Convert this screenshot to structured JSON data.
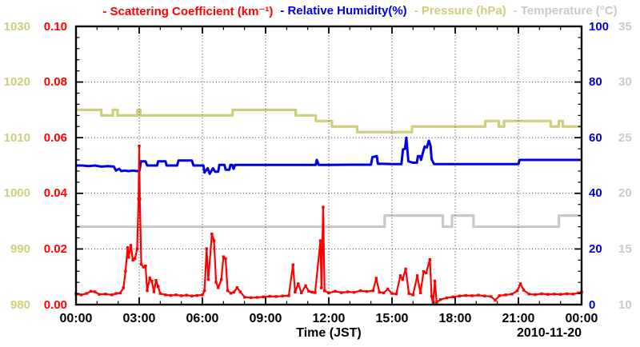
{
  "legend": [
    {
      "id": "scattering",
      "label": "- Scattering Coefficient (km⁻¹)",
      "color": "#ff0000"
    },
    {
      "id": "humidity",
      "label": "- Relative Humidity(%)",
      "color": "#0000e0"
    },
    {
      "id": "pressure",
      "label": "- Pressure (hPa)",
      "color": "#cece7c"
    },
    {
      "id": "temperature",
      "label": "- Temperature (°C)",
      "color": "#c9c9c9"
    }
  ],
  "chart_data": {
    "type": "line",
    "title": "",
    "x_axis": {
      "label": "Time (JST)",
      "date": "2010-11-20",
      "range_hours": [
        0,
        24
      ],
      "minor_step_hours": 1,
      "ticks": [
        {
          "h": 0,
          "label": "00:00"
        },
        {
          "h": 3,
          "label": "03:00"
        },
        {
          "h": 6,
          "label": "06:00"
        },
        {
          "h": 9,
          "label": "09:00"
        },
        {
          "h": 12,
          "label": "12:00"
        },
        {
          "h": 15,
          "label": "15:00"
        },
        {
          "h": 18,
          "label": "18:00"
        },
        {
          "h": 21,
          "label": "21:00"
        },
        {
          "h": 24,
          "label": "00:00"
        }
      ]
    },
    "axes": {
      "scattering": {
        "name": "Scattering Coefficient (km⁻¹)",
        "color": "#ff0000",
        "side": "left-inner",
        "min": 0,
        "max": 0.1,
        "major_step": 0.02,
        "minor_step": 0.004,
        "ticks": [
          {
            "v": 0.0,
            "label": "0.00"
          },
          {
            "v": 0.02,
            "label": "0.02"
          },
          {
            "v": 0.04,
            "label": "0.04"
          },
          {
            "v": 0.06,
            "label": "0.06"
          },
          {
            "v": 0.08,
            "label": "0.08"
          },
          {
            "v": 0.1,
            "label": "0.10"
          }
        ]
      },
      "humidity": {
        "name": "Relative Humidity(%)",
        "color": "#0000e0",
        "side": "right-inner",
        "min": 0,
        "max": 100,
        "major_step": 20,
        "minor_step": 4,
        "ticks": [
          {
            "v": 0,
            "label": "0"
          },
          {
            "v": 20,
            "label": "20"
          },
          {
            "v": 40,
            "label": "40"
          },
          {
            "v": 60,
            "label": "60"
          },
          {
            "v": 80,
            "label": "80"
          },
          {
            "v": 100,
            "label": "100"
          }
        ]
      },
      "pressure": {
        "name": "Pressure (hPa)",
        "color": "#cece7c",
        "side": "left-outer",
        "min": 980,
        "max": 1030,
        "major_step": 10,
        "minor_step": 2,
        "ticks": [
          {
            "v": 980,
            "label": "980"
          },
          {
            "v": 990,
            "label": "990"
          },
          {
            "v": 1000,
            "label": "1000"
          },
          {
            "v": 1010,
            "label": "1010"
          },
          {
            "v": 1020,
            "label": "1020"
          },
          {
            "v": 1030,
            "label": "1030"
          }
        ]
      },
      "temperature": {
        "name": "Temperature (°C)",
        "color": "#c9c9c9",
        "side": "right-outer",
        "min": 10,
        "max": 35,
        "major_step": 5,
        "minor_step": 1,
        "ticks": [
          {
            "v": 10,
            "label": "10"
          },
          {
            "v": 15,
            "label": "15"
          },
          {
            "v": 20,
            "label": "20"
          },
          {
            "v": 25,
            "label": "25"
          },
          {
            "v": 30,
            "label": "30"
          },
          {
            "v": 35,
            "label": "35"
          }
        ]
      }
    },
    "grid": {
      "v_hours": [
        3,
        6,
        9,
        12,
        15,
        18,
        21
      ],
      "h_values_scattering": [
        0.02,
        0.04,
        0.06,
        0.08
      ]
    },
    "series": [
      {
        "id": "pressure",
        "name": "Pressure (hPa)",
        "axis": "pressure",
        "color": "#cece7c",
        "style": "step",
        "width": 3.2,
        "points": [
          [
            0,
            1015
          ],
          [
            1.2,
            1014
          ],
          [
            1.75,
            1015
          ],
          [
            1.97,
            1014
          ],
          [
            2.92,
            1015
          ],
          [
            3.05,
            1014
          ],
          [
            7.43,
            1015
          ],
          [
            10.43,
            1014
          ],
          [
            11.38,
            1013
          ],
          [
            12.15,
            1012
          ],
          [
            13.35,
            1011
          ],
          [
            15.95,
            1012
          ],
          [
            19.43,
            1013
          ],
          [
            20.07,
            1012
          ],
          [
            20.32,
            1013
          ],
          [
            22.53,
            1012
          ],
          [
            22.92,
            1013
          ],
          [
            23.11,
            1012
          ],
          [
            24,
            1012
          ]
        ]
      },
      {
        "id": "temperature",
        "name": "Temperature (°C)",
        "axis": "temperature",
        "color": "#c9c9c9",
        "style": "step",
        "width": 3.2,
        "points": [
          [
            0,
            17
          ],
          [
            14.65,
            18
          ],
          [
            17.41,
            17
          ],
          [
            17.85,
            18
          ],
          [
            18.87,
            17
          ],
          [
            22.92,
            18
          ],
          [
            24,
            18
          ]
        ]
      },
      {
        "id": "humidity",
        "name": "Relative Humidity(%)",
        "axis": "humidity",
        "color": "#0000e0",
        "style": "line",
        "width": 3.0,
        "points": [
          [
            0,
            50
          ],
          [
            0.3,
            50
          ],
          [
            0.6,
            49.8
          ],
          [
            0.9,
            50
          ],
          [
            1.2,
            49.6
          ],
          [
            1.5,
            49.8
          ],
          [
            1.8,
            49.6
          ],
          [
            1.9,
            48.2
          ],
          [
            2.05,
            48.8
          ],
          [
            2.15,
            48
          ],
          [
            2.3,
            48.2
          ],
          [
            2.5,
            48
          ],
          [
            2.7,
            48.2
          ],
          [
            2.9,
            48
          ],
          [
            3.02,
            48.2
          ],
          [
            3.08,
            51.5
          ],
          [
            3.3,
            51.5
          ],
          [
            3.38,
            50
          ],
          [
            3.6,
            50
          ],
          [
            3.85,
            50
          ],
          [
            3.9,
            51.5
          ],
          [
            4.25,
            51.5
          ],
          [
            4.3,
            50
          ],
          [
            4.8,
            50
          ],
          [
            4.87,
            51.8
          ],
          [
            5.5,
            51.8
          ],
          [
            5.58,
            50
          ],
          [
            6.05,
            50
          ],
          [
            6.1,
            47.5
          ],
          [
            6.25,
            49
          ],
          [
            6.35,
            47
          ],
          [
            6.5,
            49
          ],
          [
            6.6,
            47.8
          ],
          [
            6.75,
            47.8
          ],
          [
            6.8,
            50.2
          ],
          [
            7.05,
            50.2
          ],
          [
            7.1,
            48.5
          ],
          [
            7.28,
            48.5
          ],
          [
            7.33,
            50.2
          ],
          [
            7.42,
            50.2
          ],
          [
            7.48,
            48.8
          ],
          [
            7.55,
            50.2
          ],
          [
            8,
            50.2
          ],
          [
            9,
            50.2
          ],
          [
            10,
            50.2
          ],
          [
            11,
            50.2
          ],
          [
            11.38,
            50.2
          ],
          [
            11.43,
            52
          ],
          [
            11.52,
            50.2
          ],
          [
            12,
            50.2
          ],
          [
            13,
            50.3
          ],
          [
            14,
            50.3
          ],
          [
            14.07,
            53
          ],
          [
            14.28,
            53.4
          ],
          [
            14.33,
            50.6
          ],
          [
            14.6,
            50.6
          ],
          [
            15,
            50.5
          ],
          [
            15.45,
            50.5
          ],
          [
            15.52,
            55.8
          ],
          [
            15.62,
            56
          ],
          [
            15.68,
            60
          ],
          [
            15.78,
            51.5
          ],
          [
            16,
            51
          ],
          [
            16.18,
            51
          ],
          [
            16.23,
            53.4
          ],
          [
            16.33,
            53.4
          ],
          [
            16.38,
            52
          ],
          [
            16.48,
            55
          ],
          [
            16.55,
            56.8
          ],
          [
            16.65,
            56.5
          ],
          [
            16.75,
            58.9
          ],
          [
            16.83,
            57
          ],
          [
            16.88,
            52.2
          ],
          [
            17,
            50.5
          ],
          [
            18,
            50.5
          ],
          [
            19,
            50.5
          ],
          [
            20,
            50.5
          ],
          [
            21,
            50.5
          ],
          [
            21.05,
            52
          ],
          [
            22,
            52
          ],
          [
            23,
            52
          ],
          [
            24,
            52
          ]
        ]
      },
      {
        "id": "scattering",
        "name": "Scattering Coefficient (km⁻¹)",
        "axis": "scattering",
        "color": "#ff0000",
        "style": "line",
        "width": 2.2,
        "markers": true,
        "points": [
          [
            0,
            0.0038
          ],
          [
            0.25,
            0.0035
          ],
          [
            0.5,
            0.004
          ],
          [
            0.7,
            0.0048
          ],
          [
            0.9,
            0.0046
          ],
          [
            1.1,
            0.0037
          ],
          [
            1.4,
            0.0038
          ],
          [
            1.7,
            0.0035
          ],
          [
            1.9,
            0.004
          ],
          [
            2.1,
            0.0042
          ],
          [
            2.25,
            0.006
          ],
          [
            2.35,
            0.012
          ],
          [
            2.45,
            0.0205
          ],
          [
            2.5,
            0.017
          ],
          [
            2.6,
            0.0213
          ],
          [
            2.7,
            0.016
          ],
          [
            2.8,
            0.0165
          ],
          [
            2.9,
            0.02
          ],
          [
            2.97,
            0.038
          ],
          [
            3,
            0.057
          ],
          [
            3.03,
            0.038
          ],
          [
            3.1,
            0.0145
          ],
          [
            3.2,
            0.0135
          ],
          [
            3.3,
            0.0139
          ],
          [
            3.38,
            0.005
          ],
          [
            3.5,
            0.0096
          ],
          [
            3.6,
            0.0084
          ],
          [
            3.7,
            0.0046
          ],
          [
            3.8,
            0.0087
          ],
          [
            3.9,
            0.0065
          ],
          [
            4,
            0.004
          ],
          [
            4.25,
            0.0035
          ],
          [
            4.5,
            0.0033
          ],
          [
            4.75,
            0.0035
          ],
          [
            5,
            0.0032
          ],
          [
            5.25,
            0.0034
          ],
          [
            5.5,
            0.0031
          ],
          [
            5.75,
            0.0033
          ],
          [
            6,
            0.0035
          ],
          [
            6.1,
            0.005
          ],
          [
            6.2,
            0.0201
          ],
          [
            6.28,
            0.009
          ],
          [
            6.45,
            0.0254
          ],
          [
            6.55,
            0.023
          ],
          [
            6.65,
            0.008
          ],
          [
            6.75,
            0.0061
          ],
          [
            6.9,
            0.009
          ],
          [
            7,
            0.0172
          ],
          [
            7.1,
            0.0165
          ],
          [
            7.2,
            0.005
          ],
          [
            7.35,
            0.0041
          ],
          [
            7.5,
            0.0045
          ],
          [
            7.65,
            0.0061
          ],
          [
            7.8,
            0.0046
          ],
          [
            8,
            0.0027
          ],
          [
            8.3,
            0.0025
          ],
          [
            8.6,
            0.0026
          ],
          [
            8.9,
            0.0028
          ],
          [
            9.2,
            0.003
          ],
          [
            9.5,
            0.0029
          ],
          [
            9.8,
            0.0031
          ],
          [
            10.1,
            0.0032
          ],
          [
            10.3,
            0.0143
          ],
          [
            10.4,
            0.0045
          ],
          [
            10.55,
            0.0075
          ],
          [
            10.7,
            0.0042
          ],
          [
            10.9,
            0.0068
          ],
          [
            11.05,
            0.0048
          ],
          [
            11.2,
            0.0045
          ],
          [
            11.35,
            0.0043
          ],
          [
            11.6,
            0.023
          ],
          [
            11.65,
            0.006
          ],
          [
            11.73,
            0.035
          ],
          [
            11.8,
            0.005
          ],
          [
            12,
            0.0042
          ],
          [
            12.3,
            0.0048
          ],
          [
            12.6,
            0.0043
          ],
          [
            12.9,
            0.0046
          ],
          [
            13.2,
            0.0044
          ],
          [
            13.5,
            0.005
          ],
          [
            13.8,
            0.0047
          ],
          [
            14.1,
            0.005
          ],
          [
            14.25,
            0.0095
          ],
          [
            14.4,
            0.0045
          ],
          [
            14.6,
            0.0042
          ],
          [
            14.8,
            0.0056
          ],
          [
            15,
            0.004
          ],
          [
            15.2,
            0.0038
          ],
          [
            15.4,
            0.0104
          ],
          [
            15.5,
            0.009
          ],
          [
            15.65,
            0.0128
          ],
          [
            15.8,
            0.004
          ],
          [
            16,
            0.0035
          ],
          [
            16.2,
            0.0104
          ],
          [
            16.35,
            0.0042
          ],
          [
            16.5,
            0.0119
          ],
          [
            16.62,
            0.0114
          ],
          [
            16.8,
            0.0162
          ],
          [
            16.88,
            0.003
          ],
          [
            16.95,
            0.0004
          ],
          [
            17.03,
            0.0085
          ],
          [
            17.12,
            0.0008
          ],
          [
            17.3,
            0.0018
          ],
          [
            17.6,
            0.0024
          ],
          [
            17.9,
            0.0028
          ],
          [
            18.2,
            0.0031
          ],
          [
            18.5,
            0.0033
          ],
          [
            18.8,
            0.0032
          ],
          [
            19.1,
            0.0034
          ],
          [
            19.4,
            0.0031
          ],
          [
            19.7,
            0.0029
          ],
          [
            19.9,
            0.0016
          ],
          [
            20.1,
            0.0032
          ],
          [
            20.4,
            0.0035
          ],
          [
            20.7,
            0.0038
          ],
          [
            20.95,
            0.005
          ],
          [
            21.1,
            0.0075
          ],
          [
            21.25,
            0.0052
          ],
          [
            21.5,
            0.0038
          ],
          [
            21.8,
            0.0036
          ],
          [
            22.1,
            0.0039
          ],
          [
            22.4,
            0.0037
          ],
          [
            22.7,
            0.0038
          ],
          [
            23,
            0.0037
          ],
          [
            23.3,
            0.0039
          ],
          [
            23.6,
            0.0038
          ],
          [
            23.85,
            0.0042
          ],
          [
            24,
            0.0045
          ]
        ]
      }
    ]
  }
}
